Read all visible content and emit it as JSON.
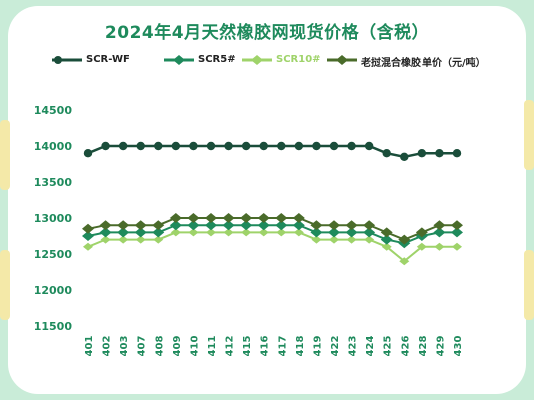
{
  "chart_data": {
    "type": "line",
    "title": "2024年4月天然橡胶网现货价格（含税）",
    "categories": [
      "401",
      "402",
      "403",
      "407",
      "408",
      "409",
      "410",
      "411",
      "412",
      "415",
      "416",
      "417",
      "418",
      "419",
      "422",
      "423",
      "424",
      "425",
      "426",
      "428",
      "429",
      "430"
    ],
    "series": [
      {
        "name": "SCR-WF",
        "color": "#1a4d3a",
        "values": [
          13900,
          14000,
          14000,
          14000,
          14000,
          14000,
          14000,
          14000,
          14000,
          14000,
          14000,
          14000,
          14000,
          14000,
          14000,
          14000,
          14000,
          13900,
          13850,
          13900,
          13900,
          13900
        ]
      },
      {
        "name": "SCR5#",
        "color": "#1e8a5c",
        "values": [
          12750,
          12800,
          12800,
          12800,
          12800,
          12900,
          12900,
          12900,
          12900,
          12900,
          12900,
          12900,
          12900,
          12800,
          12800,
          12800,
          12800,
          12700,
          12650,
          12750,
          12800,
          12800
        ]
      },
      {
        "name": "SCR10#",
        "color": "#9fd36a",
        "values": [
          12600,
          12700,
          12700,
          12700,
          12700,
          12800,
          12800,
          12800,
          12800,
          12800,
          12800,
          12800,
          12800,
          12700,
          12700,
          12700,
          12700,
          12600,
          12400,
          12600,
          12600,
          12600
        ]
      },
      {
        "name": "老挝混合橡胶",
        "color": "#4a6b2a",
        "values": [
          12850,
          12900,
          12900,
          12900,
          12900,
          13000,
          13000,
          13000,
          13000,
          13000,
          13000,
          13000,
          13000,
          12900,
          12900,
          12900,
          12900,
          12800,
          12700,
          12800,
          12900,
          12900
        ]
      }
    ],
    "unit_label": "单价（元/吨）",
    "ylim": [
      11500,
      14500
    ],
    "yticks": [
      14500,
      14000,
      13500,
      13000,
      12500,
      12000,
      11500
    ],
    "grid": false,
    "legend_position": "top"
  }
}
